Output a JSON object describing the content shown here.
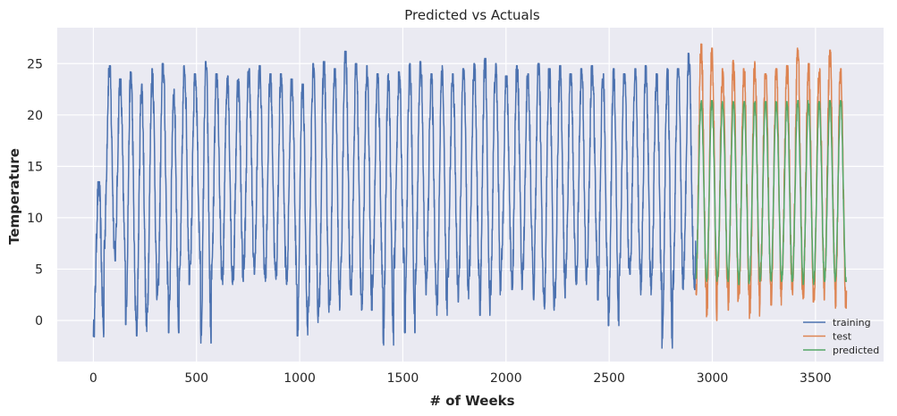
{
  "chart_data": {
    "type": "line",
    "title": "Predicted vs Actuals",
    "xlabel": "# of Weeks",
    "ylabel": "Temperature",
    "xlim": [
      -175,
      3830
    ],
    "ylim": [
      -4.0,
      28.5
    ],
    "xticks": [
      0,
      500,
      1000,
      1500,
      2000,
      2500,
      3000,
      3500
    ],
    "yticks": [
      0,
      5,
      10,
      15,
      20,
      25
    ],
    "grid": true,
    "legend_position": "bottom-right",
    "series": [
      {
        "name": "training",
        "color": "#4c72b0",
        "x_range": [
          0,
          2920
        ],
        "period": 52,
        "peaks": [
          13.5,
          24.8,
          23.5,
          24.2,
          23.0,
          24.5,
          25.0,
          22.5,
          24.8,
          24.0,
          25.2,
          24.0,
          23.8,
          23.5,
          24.5,
          24.8,
          24.0,
          24.0,
          23.5,
          23.0,
          25.0,
          25.2,
          24.5,
          26.2,
          25.0,
          24.8,
          24.0,
          24.0,
          24.2,
          25.0,
          25.2,
          24.0,
          24.8,
          24.0,
          24.5,
          25.0,
          25.5,
          25.0,
          23.8,
          24.8,
          24.0,
          25.0,
          24.5,
          24.8,
          24.0,
          24.5,
          24.8,
          24.0,
          24.5,
          24.0,
          24.5,
          24.8,
          24.0,
          24.5,
          24.5,
          26.0,
          24.0,
          25.0
        ],
        "troughs": [
          -1.6,
          7.0,
          5.8,
          -0.4,
          -1.5,
          0.8,
          3.0,
          -1.2,
          3.5,
          5.5,
          -2.2,
          4.0,
          3.5,
          3.8,
          5.0,
          4.5,
          3.8,
          4.0,
          3.5,
          -1.5,
          -0.2,
          0.8,
          1.0,
          3.0,
          2.5,
          1.0,
          3.2,
          -2.4,
          5.0,
          -1.2,
          3.5,
          2.5,
          0.5,
          3.5,
          1.8,
          4.0,
          0.5,
          2.5,
          4.8,
          3.0,
          4.5,
          2.0,
          1.0,
          2.2,
          3.8,
          3.5,
          5.2,
          2.0,
          -0.5,
          4.0,
          4.5,
          2.5,
          3.0,
          -2.7,
          3.0,
          4.0,
          3.0,
          3.5
        ]
      },
      {
        "name": "test",
        "color": "#dd8452",
        "x_range": [
          2920,
          3650
        ],
        "period": 52,
        "peaks": [
          26.9,
          26.5,
          24.5,
          25.3,
          24.5,
          25.2,
          24.0,
          24.5,
          24.8,
          26.5,
          25.0,
          24.5,
          26.3,
          24.5
        ],
        "troughs": [
          2.5,
          0.0,
          2.5,
          1.0,
          2.5,
          0.2,
          3.5,
          1.5,
          3.0,
          2.5,
          1.8,
          2.0,
          3.0,
          1.2
        ]
      },
      {
        "name": "predicted",
        "color": "#55a868",
        "x_range": [
          2920,
          3650
        ],
        "period": 52,
        "peaks": [
          21.4,
          21.4,
          21.3,
          21.3,
          21.3,
          21.3,
          21.3,
          21.3,
          21.3,
          21.4,
          21.4,
          21.3,
          21.4,
          21.4
        ],
        "troughs": [
          4.0,
          3.8,
          4.0,
          3.8,
          3.5,
          3.8,
          4.0,
          3.8,
          3.8,
          3.8,
          3.5,
          3.8,
          3.8,
          3.8
        ]
      }
    ]
  }
}
